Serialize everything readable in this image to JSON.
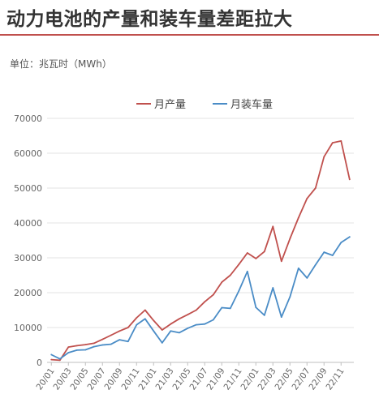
{
  "title": "动力电池的产量和装车量差距拉大",
  "unit_label": "单位：兆瓦时（MWh）",
  "colors": {
    "production": "#c0504d",
    "installed": "#4a8cc6",
    "accent": "#c0504d"
  },
  "chart_data": {
    "type": "line",
    "title": "动力电池的产量和装车量差距拉大",
    "xlabel": "",
    "ylabel": "",
    "ylim": [
      0,
      70000
    ],
    "yticks": [
      0,
      10000,
      20000,
      30000,
      40000,
      50000,
      60000,
      70000
    ],
    "grid": true,
    "legend_position": "top",
    "x": [
      "20/01",
      "20/02",
      "20/03",
      "20/04",
      "20/05",
      "20/06",
      "20/07",
      "20/08",
      "20/09",
      "20/10",
      "20/11",
      "20/12",
      "21/01",
      "21/02",
      "21/03",
      "21/04",
      "21/05",
      "21/06",
      "21/07",
      "21/08",
      "21/09",
      "21/10",
      "21/11",
      "21/12",
      "22/01",
      "22/02",
      "22/03",
      "22/04",
      "22/05",
      "22/06",
      "22/07",
      "22/08",
      "22/09",
      "22/10",
      "22/11",
      "22/12"
    ],
    "tick_labels": [
      "20/01",
      "20/03",
      "20/05",
      "20/07",
      "20/09",
      "20/11",
      "21/01",
      "21/03",
      "21/05",
      "21/07",
      "21/09",
      "21/11",
      "22/01",
      "22/03",
      "22/05",
      "22/07",
      "22/09",
      "22/11"
    ],
    "series": [
      {
        "name": "月产量",
        "color": "#c0504d",
        "values": [
          800,
          600,
          4400,
          4800,
          5100,
          5500,
          6600,
          7800,
          9000,
          10000,
          12800,
          15000,
          12000,
          9300,
          11000,
          12500,
          13700,
          15000,
          17400,
          19400,
          23000,
          25000,
          28100,
          31400,
          29800,
          31800,
          39000,
          29000,
          35500,
          41500,
          47000,
          50000,
          59000,
          63000,
          63500,
          52500
        ]
      },
      {
        "name": "月装车量",
        "color": "#4a8cc6",
        "values": [
          2200,
          1000,
          2800,
          3500,
          3600,
          4500,
          5000,
          5200,
          6500,
          6000,
          10800,
          12500,
          9000,
          5600,
          9000,
          8500,
          9800,
          10800,
          11000,
          12200,
          15700,
          15500,
          20500,
          26100,
          15800,
          13500,
          21400,
          13000,
          18800,
          27000,
          24200,
          28000,
          31600,
          30700,
          34400,
          36000
        ]
      }
    ]
  }
}
